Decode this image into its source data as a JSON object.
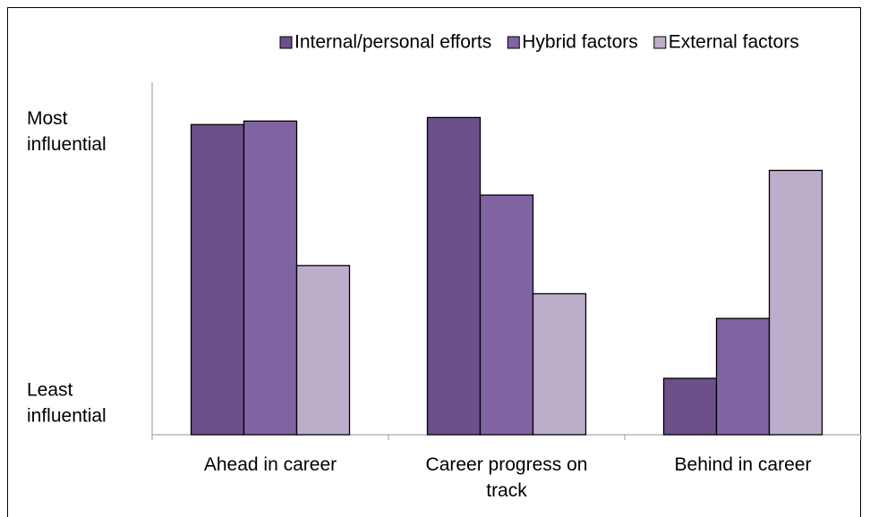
{
  "chart_data": {
    "type": "bar",
    "categories": [
      "Ahead in career",
      "Career progress on track",
      "Behind in career"
    ],
    "series": [
      {
        "name": "Internal/personal efforts",
        "color": "#6b5089",
        "values": [
          88,
          90,
          16
        ]
      },
      {
        "name": "Hybrid factors",
        "color": "#8064a2",
        "values": [
          89,
          68,
          33
        ]
      },
      {
        "name": "External factors",
        "color": "#bcaecb",
        "values": [
          48,
          40,
          75
        ]
      }
    ],
    "ylim": [
      0,
      100
    ],
    "yticks": [
      {
        "value": 86,
        "label": "Most influential"
      },
      {
        "value": 9,
        "label": "Least influential"
      }
    ],
    "grid": false,
    "legend": "top"
  }
}
